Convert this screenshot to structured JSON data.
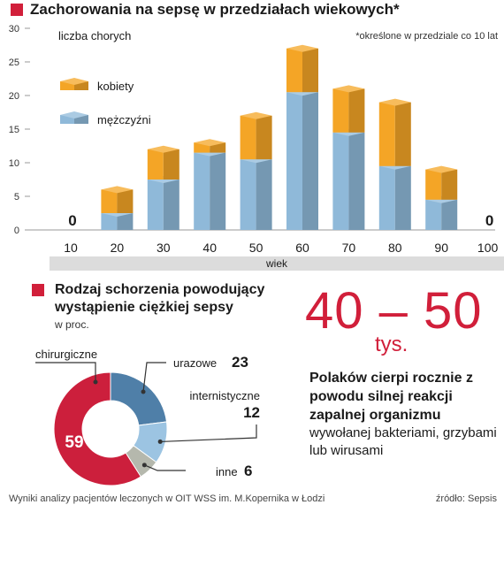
{
  "chart_data": [
    {
      "type": "bar",
      "title": "Zachorowania na sepsę w przedziałach wiekowych*",
      "ylabel": "liczba chorych",
      "xlabel": "wiek",
      "note": "*określone w przedziale co 10 lat",
      "categories": [
        "10",
        "20",
        "30",
        "40",
        "50",
        "60",
        "70",
        "80",
        "90",
        "100"
      ],
      "ylim": [
        0,
        30
      ],
      "yticks": [
        "0",
        "5",
        "10",
        "15",
        "20",
        "25",
        "30"
      ],
      "stacked": true,
      "series": [
        {
          "name": "mężczyźni",
          "color": "#8fb9d9",
          "values": [
            0,
            2.5,
            7.5,
            11.5,
            10.5,
            20.5,
            14.5,
            9.5,
            4.5,
            0
          ]
        },
        {
          "name": "kobiety",
          "color": "#f4a526",
          "values": [
            0,
            3.5,
            4.5,
            1.5,
            6.5,
            6.5,
            6.5,
            9.5,
            4.5,
            0
          ]
        }
      ],
      "zero_labels": [
        "0",
        "0"
      ],
      "legend": "top-left"
    },
    {
      "type": "pie",
      "title": "Rodzaj schorzenia powodujący wystąpienie ciężkiej sepsy",
      "unit": "w proc.",
      "slices": [
        {
          "name": "urazowe",
          "value": 23,
          "label": "23",
          "color": "#4f7fa8"
        },
        {
          "name": "internistyczne",
          "value": 12,
          "label": "12",
          "color": "#9cc4e2"
        },
        {
          "name": "inne",
          "value": 6,
          "label": "6",
          "color": "#b5b8ad"
        },
        {
          "name": "chirurgiczne",
          "value": 59,
          "label": "59",
          "color": "#cc1f3c"
        }
      ]
    }
  ],
  "stat": {
    "number": "40 – 50",
    "unit": "tys.",
    "bold_text": "Polaków cierpi rocznie z powodu silnej reakcji zapalnej organizmu",
    "text": "wywołanej bakteriami, grzybami lub wirusami"
  },
  "footer": {
    "note": "Wyniki analizy pacjentów leczonych w OIT WSS im. M.Kopernika w Łodzi",
    "source": "źródło: Sepsis"
  },
  "colors": {
    "accent": "#d11f3a",
    "axis_bg": "#dcdcdc"
  }
}
